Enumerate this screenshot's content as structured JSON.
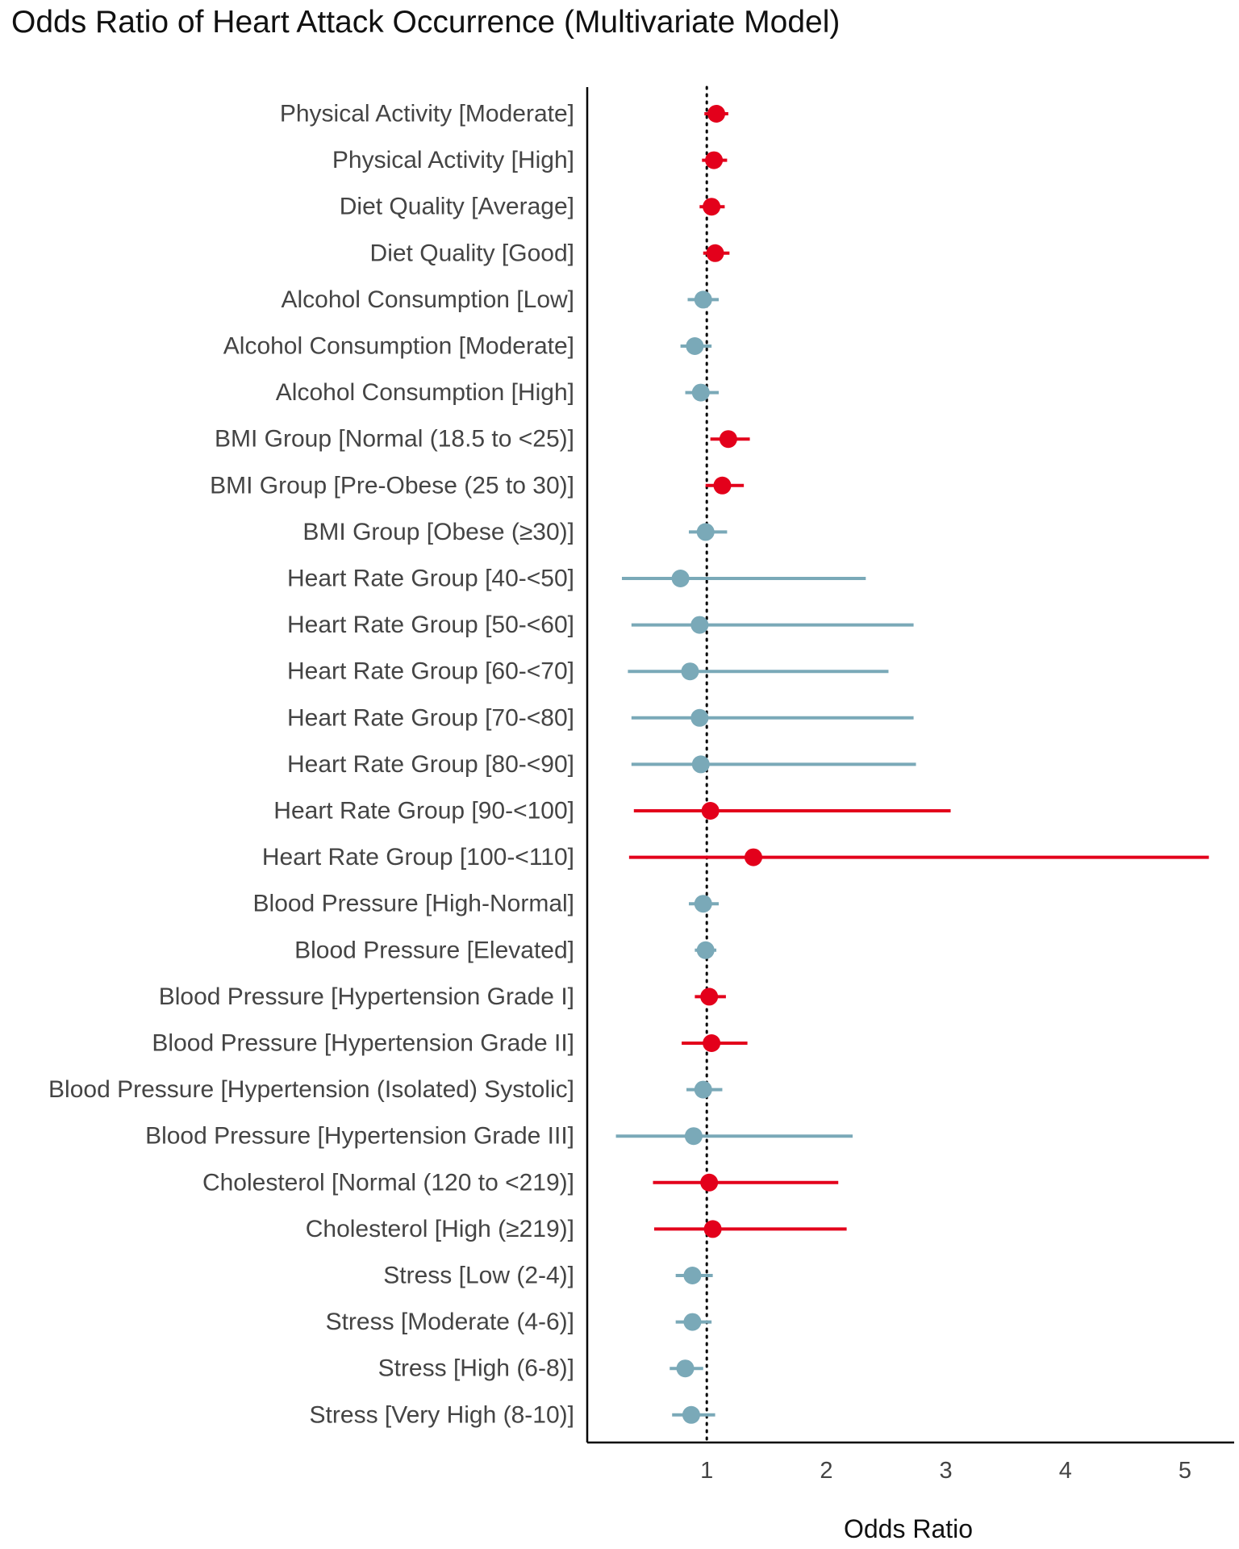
{
  "chart_data": {
    "type": "forest",
    "title": "Odds Ratio of Heart Attack Occurrence (Multivariate Model)",
    "xlabel": "Odds Ratio",
    "ylabel": "",
    "xlim": [
      0.0,
      5.4
    ],
    "x_ticks": [
      1,
      2,
      3,
      4,
      5
    ],
    "reference_line": 1,
    "grid": false,
    "colors": {
      "above_one": "#e3001b",
      "not_above_one": "#7aa9b8"
    },
    "rows": [
      {
        "label": "Physical Activity [Moderate]",
        "or": 1.08,
        "lo": 0.98,
        "hi": 1.18,
        "sig": true
      },
      {
        "label": "Physical Activity [High]",
        "or": 1.06,
        "lo": 0.96,
        "hi": 1.17,
        "sig": true
      },
      {
        "label": "Diet Quality [Average]",
        "or": 1.04,
        "lo": 0.94,
        "hi": 1.15,
        "sig": true
      },
      {
        "label": "Diet Quality [Good]",
        "or": 1.07,
        "lo": 0.97,
        "hi": 1.19,
        "sig": true
      },
      {
        "label": "Alcohol Consumption [Low]",
        "or": 0.97,
        "lo": 0.84,
        "hi": 1.1,
        "sig": false
      },
      {
        "label": "Alcohol Consumption [Moderate]",
        "or": 0.9,
        "lo": 0.78,
        "hi": 1.04,
        "sig": false
      },
      {
        "label": "Alcohol Consumption [High]",
        "or": 0.95,
        "lo": 0.82,
        "hi": 1.1,
        "sig": false
      },
      {
        "label": "BMI Group [Normal (18.5 to <25)]",
        "or": 1.18,
        "lo": 1.03,
        "hi": 1.36,
        "sig": true
      },
      {
        "label": "BMI Group [Pre-Obese (25 to 30)]",
        "or": 1.13,
        "lo": 0.99,
        "hi": 1.31,
        "sig": true
      },
      {
        "label": "BMI Group [Obese (≥30)]",
        "or": 0.99,
        "lo": 0.85,
        "hi": 1.17,
        "sig": false
      },
      {
        "label": "Heart Rate Group [40-<50]",
        "or": 0.78,
        "lo": 0.29,
        "hi": 2.33,
        "sig": false
      },
      {
        "label": "Heart Rate Group [50-<60]",
        "or": 0.94,
        "lo": 0.37,
        "hi": 2.73,
        "sig": false
      },
      {
        "label": "Heart Rate Group [60-<70]",
        "or": 0.86,
        "lo": 0.34,
        "hi": 2.52,
        "sig": false
      },
      {
        "label": "Heart Rate Group [70-<80]",
        "or": 0.94,
        "lo": 0.37,
        "hi": 2.73,
        "sig": false
      },
      {
        "label": "Heart Rate Group [80-<90]",
        "or": 0.95,
        "lo": 0.37,
        "hi": 2.75,
        "sig": false
      },
      {
        "label": "Heart Rate Group [90-<100]",
        "or": 1.03,
        "lo": 0.39,
        "hi": 3.04,
        "sig": true
      },
      {
        "label": "Heart Rate Group [100-<110]",
        "or": 1.39,
        "lo": 0.35,
        "hi": 5.2,
        "sig": true
      },
      {
        "label": "Blood Pressure [High-Normal]",
        "or": 0.97,
        "lo": 0.85,
        "hi": 1.1,
        "sig": false
      },
      {
        "label": "Blood Pressure [Elevated]",
        "or": 0.99,
        "lo": 0.9,
        "hi": 1.08,
        "sig": false
      },
      {
        "label": "Blood Pressure [Hypertension Grade I]",
        "or": 1.02,
        "lo": 0.9,
        "hi": 1.16,
        "sig": true
      },
      {
        "label": "Blood Pressure [Hypertension Grade II]",
        "or": 1.04,
        "lo": 0.79,
        "hi": 1.34,
        "sig": true
      },
      {
        "label": "Blood Pressure [Hypertension (Isolated) Systolic]",
        "or": 0.97,
        "lo": 0.83,
        "hi": 1.13,
        "sig": false
      },
      {
        "label": "Blood Pressure [Hypertension Grade III]",
        "or": 0.89,
        "lo": 0.24,
        "hi": 2.22,
        "sig": false
      },
      {
        "label": "Cholesterol [Normal (120 to <219)]",
        "or": 1.02,
        "lo": 0.55,
        "hi": 2.1,
        "sig": true
      },
      {
        "label": "Cholesterol [High (≥219)]",
        "or": 1.05,
        "lo": 0.56,
        "hi": 2.17,
        "sig": true
      },
      {
        "label": "Stress [Low (2-4)]",
        "or": 0.88,
        "lo": 0.74,
        "hi": 1.05,
        "sig": false
      },
      {
        "label": "Stress [Moderate (4-6)]",
        "or": 0.88,
        "lo": 0.74,
        "hi": 1.04,
        "sig": false
      },
      {
        "label": "Stress [High (6-8)]",
        "or": 0.82,
        "lo": 0.69,
        "hi": 0.97,
        "sig": false
      },
      {
        "label": "Stress [Very High (8-10)]",
        "or": 0.87,
        "lo": 0.71,
        "hi": 1.07,
        "sig": false
      }
    ]
  }
}
